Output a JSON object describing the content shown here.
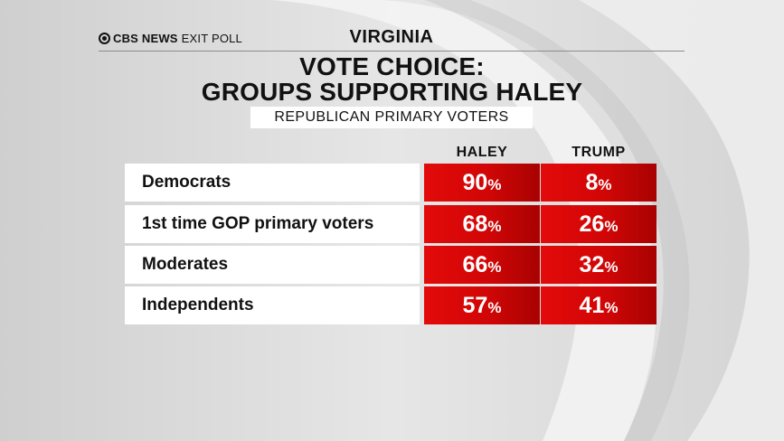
{
  "header": {
    "brand_bold": "CBS NEWS",
    "brand_rest": "EXIT POLL",
    "state": "VIRGINIA"
  },
  "colors": {
    "bar_red": "#d10606",
    "label_bg": "#ffffff",
    "background": "#d9d9d9"
  },
  "chart_data": {
    "type": "table",
    "title_line1": "VOTE CHOICE:",
    "title_line2": "GROUPS SUPPORTING HALEY",
    "subtitle": "REPUBLICAN PRIMARY VOTERS",
    "columns": [
      "HALEY",
      "TRUMP"
    ],
    "rows": [
      {
        "label": "Democrats",
        "values": [
          "90",
          "8"
        ]
      },
      {
        "label": "1st time GOP primary voters",
        "values": [
          "68",
          "26"
        ]
      },
      {
        "label": "Moderates",
        "values": [
          "66",
          "32"
        ]
      },
      {
        "label": "Independents",
        "values": [
          "57",
          "41"
        ]
      }
    ],
    "unit": "%"
  }
}
